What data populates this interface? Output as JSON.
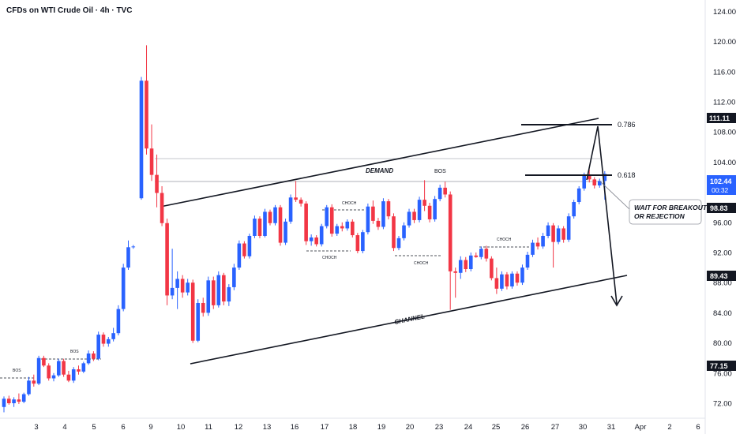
{
  "chart_data": {
    "type": "candlestick",
    "title": "CFDs on WTI Crude Oil · 4h · TVC",
    "ylim": [
      71,
      126
    ],
    "y_ticks": [
      72,
      76,
      80,
      84,
      88,
      92,
      96,
      100,
      104,
      108,
      112,
      116,
      120,
      124
    ],
    "x_ticks": [
      "3",
      "4",
      "5",
      "6",
      "9",
      "10",
      "11",
      "12",
      "13",
      "16",
      "17",
      "18",
      "19",
      "20",
      "23",
      "24",
      "25",
      "26",
      "27",
      "30",
      "31",
      "Apr",
      "2",
      "6"
    ],
    "grid": false,
    "colors": {
      "up": "#2962ff",
      "down": "#f23645",
      "line": "#131722",
      "tag": "#131722",
      "price_tag": "#2962ff"
    },
    "candles": [
      [
        71.5,
        72.9,
        70.8,
        72.6
      ],
      [
        72.6,
        73.0,
        71.8,
        72.0
      ],
      [
        72.0,
        72.8,
        71.5,
        72.5
      ],
      [
        72.5,
        73.3,
        71.9,
        72.2
      ],
      [
        72.2,
        73.4,
        72.0,
        73.2
      ],
      [
        73.2,
        75.5,
        73.0,
        75.0
      ],
      [
        75.0,
        75.8,
        74.2,
        74.6
      ],
      [
        74.6,
        78.3,
        74.4,
        78.0
      ],
      [
        78.0,
        78.3,
        76.8,
        77.0
      ],
      [
        77.0,
        77.3,
        75.0,
        75.3
      ],
      [
        75.3,
        76.0,
        74.9,
        75.7
      ],
      [
        75.7,
        77.9,
        75.5,
        77.6
      ],
      [
        77.6,
        77.9,
        75.5,
        75.8
      ],
      [
        75.8,
        76.3,
        74.8,
        75.0
      ],
      [
        75.0,
        76.8,
        74.7,
        76.5
      ],
      [
        76.5,
        77.0,
        75.8,
        76.2
      ],
      [
        76.2,
        77.5,
        76.0,
        77.3
      ],
      [
        77.3,
        79.0,
        77.1,
        78.6
      ],
      [
        78.6,
        78.9,
        77.6,
        77.9
      ],
      [
        77.9,
        81.5,
        77.7,
        81.1
      ],
      [
        81.1,
        81.4,
        79.5,
        79.9
      ],
      [
        79.9,
        80.8,
        79.5,
        80.5
      ],
      [
        80.5,
        82.0,
        80.2,
        81.3
      ],
      [
        81.3,
        85.0,
        81.0,
        84.5
      ],
      [
        84.5,
        90.5,
        84.2,
        90.0
      ],
      [
        90.0,
        93.6,
        89.7,
        92.7
      ],
      [
        92.7,
        93.0,
        92.5,
        92.8
      ],
      [
        99.2,
        115.3,
        99.0,
        114.8
      ],
      [
        114.8,
        119.5,
        105.0,
        105.8
      ],
      [
        105.8,
        109.0,
        101.5,
        102.3
      ],
      [
        102.3,
        105.0,
        98.0,
        99.9
      ],
      [
        99.9,
        100.8,
        95.5,
        95.9
      ],
      [
        95.9,
        96.5,
        85.0,
        86.3
      ],
      [
        86.3,
        92.5,
        85.8,
        87.3
      ],
      [
        87.3,
        89.5,
        84.5,
        88.5
      ],
      [
        88.5,
        89.0,
        86.0,
        86.7
      ],
      [
        86.7,
        88.5,
        86.3,
        88.0
      ],
      [
        88.0,
        88.4,
        80.0,
        80.3
      ],
      [
        80.3,
        85.8,
        80.1,
        85.3
      ],
      [
        85.3,
        86.0,
        83.5,
        84.0
      ],
      [
        84.0,
        88.8,
        83.6,
        88.3
      ],
      [
        88.3,
        88.8,
        84.5,
        85.0
      ],
      [
        85.0,
        89.5,
        84.7,
        89.0
      ],
      [
        89.0,
        89.3,
        85.0,
        85.5
      ],
      [
        85.5,
        87.8,
        84.9,
        87.4
      ],
      [
        87.4,
        90.5,
        87.0,
        90.0
      ],
      [
        90.0,
        93.6,
        89.7,
        93.2
      ],
      [
        93.2,
        93.5,
        91.2,
        91.5
      ],
      [
        91.5,
        94.5,
        91.2,
        94.2
      ],
      [
        94.2,
        96.9,
        93.9,
        96.5
      ],
      [
        96.5,
        96.8,
        93.9,
        94.2
      ],
      [
        94.2,
        97.8,
        94.0,
        97.4
      ],
      [
        97.4,
        97.7,
        95.6,
        95.9
      ],
      [
        95.9,
        98.3,
        95.6,
        98.0
      ],
      [
        98.0,
        98.3,
        92.9,
        93.3
      ],
      [
        93.3,
        96.5,
        93.0,
        96.1
      ],
      [
        96.1,
        99.7,
        95.8,
        99.3
      ],
      [
        99.3,
        101.5,
        98.7,
        99.0
      ],
      [
        99.0,
        99.3,
        98.1,
        98.5
      ],
      [
        98.5,
        98.8,
        93.0,
        93.5
      ],
      [
        93.5,
        94.4,
        92.9,
        94.0
      ],
      [
        94.0,
        94.3,
        92.8,
        93.1
      ],
      [
        93.1,
        95.8,
        92.8,
        95.5
      ],
      [
        95.5,
        98.3,
        95.2,
        98.0
      ],
      [
        98.0,
        98.4,
        94.1,
        94.5
      ],
      [
        94.5,
        95.8,
        94.2,
        95.5
      ],
      [
        95.5,
        96.0,
        94.8,
        95.2
      ],
      [
        95.2,
        96.4,
        94.9,
        96.1
      ],
      [
        96.1,
        96.4,
        94.0,
        94.3
      ],
      [
        94.3,
        94.6,
        91.9,
        92.2
      ],
      [
        92.2,
        95.0,
        91.9,
        94.7
      ],
      [
        94.7,
        98.5,
        94.4,
        98.1
      ],
      [
        98.1,
        98.9,
        95.8,
        96.2
      ],
      [
        96.2,
        96.6,
        95.0,
        95.4
      ],
      [
        95.4,
        99.2,
        95.1,
        98.8
      ],
      [
        98.8,
        99.1,
        96.4,
        96.8
      ],
      [
        96.8,
        97.2,
        92.2,
        92.6
      ],
      [
        92.6,
        94.2,
        92.3,
        93.9
      ],
      [
        93.9,
        96.0,
        93.6,
        95.6
      ],
      [
        95.6,
        97.8,
        95.3,
        97.4
      ],
      [
        97.4,
        97.8,
        95.9,
        96.3
      ],
      [
        96.3,
        99.4,
        96.0,
        99.0
      ],
      [
        99.0,
        101.6,
        97.5,
        98.2
      ],
      [
        98.2,
        98.6,
        96.0,
        96.4
      ],
      [
        96.4,
        99.5,
        96.1,
        99.1
      ],
      [
        99.1,
        101.0,
        98.8,
        100.6
      ],
      [
        100.6,
        101.4,
        99.3,
        99.7
      ],
      [
        99.7,
        100.1,
        84.4,
        89.5
      ],
      [
        89.5,
        90.0,
        86.0,
        89.3
      ],
      [
        89.3,
        91.5,
        88.5,
        91.0
      ],
      [
        91.0,
        91.4,
        89.4,
        89.8
      ],
      [
        89.8,
        92.0,
        89.5,
        91.6
      ],
      [
        91.6,
        92.0,
        91.3,
        91.4
      ],
      [
        91.4,
        92.8,
        91.1,
        92.5
      ],
      [
        92.5,
        92.9,
        90.8,
        91.2
      ],
      [
        91.2,
        91.5,
        88.3,
        88.6
      ],
      [
        88.6,
        90.0,
        86.5,
        87.2
      ],
      [
        87.2,
        89.5,
        86.9,
        89.1
      ],
      [
        89.1,
        89.4,
        87.1,
        87.5
      ],
      [
        87.5,
        89.5,
        87.2,
        89.2
      ],
      [
        89.2,
        89.5,
        87.6,
        88.0
      ],
      [
        88.0,
        90.4,
        87.7,
        90.0
      ],
      [
        90.0,
        92.1,
        89.7,
        91.7
      ],
      [
        91.7,
        93.7,
        91.4,
        93.3
      ],
      [
        93.3,
        94.0,
        92.4,
        92.8
      ],
      [
        92.8,
        94.6,
        92.5,
        94.2
      ],
      [
        94.2,
        96.0,
        93.9,
        95.6
      ],
      [
        95.6,
        95.9,
        90.0,
        93.4
      ],
      [
        93.4,
        95.6,
        93.1,
        95.2
      ],
      [
        95.2,
        95.5,
        93.3,
        93.7
      ],
      [
        93.7,
        97.2,
        93.4,
        96.8
      ],
      [
        96.8,
        99.0,
        96.5,
        98.7
      ],
      [
        98.7,
        100.8,
        98.4,
        100.5
      ],
      [
        100.5,
        102.6,
        100.2,
        102.2
      ],
      [
        102.2,
        103.0,
        101.3,
        101.7
      ],
      [
        101.7,
        102.0,
        100.5,
        100.9
      ],
      [
        100.9,
        101.8,
        100.6,
        101.5
      ],
      [
        101.5,
        102.8,
        99.0,
        102.44
      ]
    ],
    "levels": {
      "high_price": "111.11",
      "current_price": "102.44",
      "countdown": "00:32",
      "prev_close": "98.83",
      "mid_price": "89.43",
      "low_price": "77.15"
    },
    "fib_levels": [
      "0.786",
      "0.618"
    ],
    "annotations": {
      "demand": "DEMAND",
      "channel": "CHANNEL",
      "note_line1": "WAIT FOR BREAKOUT",
      "note_line2": "OR REJECTION",
      "bos": "BOS",
      "choch": "CHOCH"
    }
  }
}
